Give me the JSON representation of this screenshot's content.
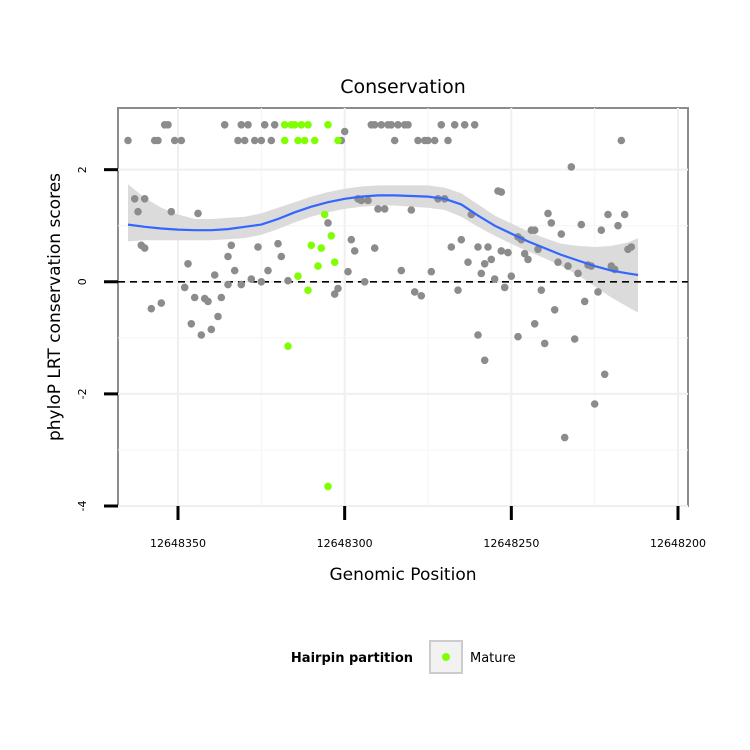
{
  "chart_data": {
    "type": "scatter",
    "title": "Conservation",
    "xlabel": "Genomic Position",
    "ylabel": "phyloP LRT conservation scores",
    "x_reversed": true,
    "xlim": [
      12648368,
      12648197
    ],
    "ylim": [
      -4,
      3.1
    ],
    "x_ticks": [
      12648350,
      12648300,
      12648250,
      12648200
    ],
    "x_tick_labels": [
      "12648350",
      "12648300",
      "12648250",
      "12648200"
    ],
    "y_ticks": [
      -4,
      -2,
      0,
      2
    ],
    "y_tick_labels": [
      "-4",
      "-2",
      "0",
      "2"
    ],
    "reference_line": {
      "y": 0,
      "style": "dashed"
    },
    "legend": {
      "title": "Hairpin partition",
      "position": "bottom",
      "entries": [
        {
          "label": "Mature",
          "color": "#7fff00"
        }
      ]
    },
    "colors": {
      "other": "#8c8c8c",
      "mature": "#7fff00",
      "smooth": "#3366ff",
      "ribbon": "#d9d9d9"
    },
    "series": [
      {
        "name": "Other",
        "points": [
          [
            12648365,
            2.52
          ],
          [
            12648363,
            1.48
          ],
          [
            12648362,
            1.25
          ],
          [
            12648361,
            0.65
          ],
          [
            12648360,
            1.48
          ],
          [
            12648360,
            0.6
          ],
          [
            12648358,
            -0.48
          ],
          [
            12648357,
            2.52
          ],
          [
            12648356,
            2.52
          ],
          [
            12648355,
            -0.38
          ],
          [
            12648354,
            2.8
          ],
          [
            12648353,
            2.8
          ],
          [
            12648352,
            1.25
          ],
          [
            12648351,
            2.52
          ],
          [
            12648349,
            2.52
          ],
          [
            12648348,
            -0.1
          ],
          [
            12648347,
            0.32
          ],
          [
            12648346,
            -0.75
          ],
          [
            12648345,
            -0.28
          ],
          [
            12648344,
            1.22
          ],
          [
            12648343,
            -0.95
          ],
          [
            12648342,
            -0.3
          ],
          [
            12648341,
            -0.35
          ],
          [
            12648340,
            -0.85
          ],
          [
            12648339,
            0.12
          ],
          [
            12648338,
            -0.62
          ],
          [
            12648337,
            -0.28
          ],
          [
            12648336,
            2.8
          ],
          [
            12648335,
            -0.05
          ],
          [
            12648335,
            0.45
          ],
          [
            12648334,
            0.65
          ],
          [
            12648333,
            0.2
          ],
          [
            12648332,
            2.52
          ],
          [
            12648331,
            2.8
          ],
          [
            12648331,
            -0.05
          ],
          [
            12648330,
            2.52
          ],
          [
            12648329,
            2.8
          ],
          [
            12648328,
            0.05
          ],
          [
            12648327,
            2.52
          ],
          [
            12648326,
            0.62
          ],
          [
            12648325,
            0.0
          ],
          [
            12648325,
            2.52
          ],
          [
            12648324,
            2.8
          ],
          [
            12648323,
            0.2
          ],
          [
            12648322,
            2.52
          ],
          [
            12648321,
            2.8
          ],
          [
            12648320,
            0.68
          ],
          [
            12648319,
            0.45
          ],
          [
            12648317,
            0.02
          ],
          [
            12648305,
            1.05
          ],
          [
            12648303,
            -0.22
          ],
          [
            12648302,
            -0.12
          ],
          [
            12648301,
            2.52
          ],
          [
            12648300,
            2.68
          ],
          [
            12648299,
            0.18
          ],
          [
            12648298,
            0.75
          ],
          [
            12648297,
            0.55
          ],
          [
            12648296,
            1.48
          ],
          [
            12648295,
            1.45
          ],
          [
            12648294,
            0.0
          ],
          [
            12648293,
            1.45
          ],
          [
            12648292,
            2.8
          ],
          [
            12648291,
            0.6
          ],
          [
            12648291,
            2.8
          ],
          [
            12648290,
            1.3
          ],
          [
            12648289,
            2.8
          ],
          [
            12648288,
            1.3
          ],
          [
            12648287,
            2.8
          ],
          [
            12648286,
            2.8
          ],
          [
            12648285,
            2.52
          ],
          [
            12648284,
            2.8
          ],
          [
            12648283,
            0.2
          ],
          [
            12648282,
            2.8
          ],
          [
            12648281,
            2.8
          ],
          [
            12648280,
            1.28
          ],
          [
            12648279,
            -0.18
          ],
          [
            12648278,
            2.52
          ],
          [
            12648277,
            -0.25
          ],
          [
            12648276,
            2.52
          ],
          [
            12648275,
            2.52
          ],
          [
            12648274,
            0.18
          ],
          [
            12648273,
            2.52
          ],
          [
            12648272,
            1.48
          ],
          [
            12648271,
            2.8
          ],
          [
            12648270,
            1.48
          ],
          [
            12648269,
            2.52
          ],
          [
            12648268,
            0.62
          ],
          [
            12648267,
            2.8
          ],
          [
            12648266,
            -0.15
          ],
          [
            12648265,
            0.75
          ],
          [
            12648264,
            2.8
          ],
          [
            12648263,
            0.35
          ],
          [
            12648262,
            1.2
          ],
          [
            12648261,
            2.8
          ],
          [
            12648260,
            -0.95
          ],
          [
            12648260,
            0.62
          ],
          [
            12648259,
            0.15
          ],
          [
            12648258,
            -1.4
          ],
          [
            12648258,
            0.32
          ],
          [
            12648257,
            0.62
          ],
          [
            12648256,
            0.4
          ],
          [
            12648255,
            0.05
          ],
          [
            12648254,
            1.62
          ],
          [
            12648253,
            1.6
          ],
          [
            12648253,
            0.55
          ],
          [
            12648252,
            -0.1
          ],
          [
            12648251,
            0.52
          ],
          [
            12648250,
            0.1
          ],
          [
            12648248,
            -0.98
          ],
          [
            12648248,
            0.8
          ],
          [
            12648247,
            0.75
          ],
          [
            12648246,
            0.5
          ],
          [
            12648245,
            0.4
          ],
          [
            12648244,
            0.92
          ],
          [
            12648243,
            0.92
          ],
          [
            12648243,
            -0.75
          ],
          [
            12648242,
            0.58
          ],
          [
            12648241,
            -0.15
          ],
          [
            12648240,
            -1.1
          ],
          [
            12648239,
            1.22
          ],
          [
            12648238,
            1.05
          ],
          [
            12648237,
            -0.5
          ],
          [
            12648236,
            0.35
          ],
          [
            12648235,
            0.85
          ],
          [
            12648234,
            -2.78
          ],
          [
            12648233,
            0.28
          ],
          [
            12648232,
            2.05
          ],
          [
            12648231,
            -1.02
          ],
          [
            12648230,
            0.15
          ],
          [
            12648229,
            1.02
          ],
          [
            12648228,
            -0.35
          ],
          [
            12648227,
            0.3
          ],
          [
            12648226,
            0.28
          ],
          [
            12648225,
            -2.18
          ],
          [
            12648224,
            -0.18
          ],
          [
            12648223,
            0.92
          ],
          [
            12648222,
            -1.65
          ],
          [
            12648221,
            1.2
          ],
          [
            12648220,
            0.28
          ],
          [
            12648219,
            0.22
          ],
          [
            12648218,
            1.0
          ],
          [
            12648217,
            2.52
          ],
          [
            12648216,
            1.2
          ],
          [
            12648215,
            0.58
          ],
          [
            12648214,
            0.62
          ]
        ]
      },
      {
        "name": "Mature",
        "points": [
          [
            12648318,
            2.8
          ],
          [
            12648318,
            2.52
          ],
          [
            12648317,
            -1.15
          ],
          [
            12648316,
            2.8
          ],
          [
            12648315,
            2.8
          ],
          [
            12648314,
            2.52
          ],
          [
            12648314,
            0.1
          ],
          [
            12648313,
            2.8
          ],
          [
            12648312,
            2.52
          ],
          [
            12648311,
            -0.15
          ],
          [
            12648311,
            2.8
          ],
          [
            12648310,
            0.65
          ],
          [
            12648309,
            2.52
          ],
          [
            12648308,
            0.28
          ],
          [
            12648307,
            0.6
          ],
          [
            12648306,
            1.2
          ],
          [
            12648305,
            -3.65
          ],
          [
            12648305,
            2.8
          ],
          [
            12648304,
            0.82
          ],
          [
            12648303,
            0.35
          ],
          [
            12648302,
            2.52
          ]
        ]
      }
    ],
    "smooth_line": {
      "x": [
        12648365,
        12648360,
        12648355,
        12648350,
        12648345,
        12648340,
        12648335,
        12648330,
        12648325,
        12648320,
        12648315,
        12648310,
        12648305,
        12648300,
        12648295,
        12648290,
        12648285,
        12648280,
        12648275,
        12648270,
        12648265,
        12648260,
        12648255,
        12648250,
        12648245,
        12648240,
        12648235,
        12648230,
        12648225,
        12648220,
        12648215,
        12648212
      ],
      "y": [
        1.02,
        0.98,
        0.95,
        0.93,
        0.92,
        0.92,
        0.94,
        0.98,
        1.02,
        1.12,
        1.24,
        1.34,
        1.42,
        1.48,
        1.52,
        1.54,
        1.54,
        1.53,
        1.52,
        1.48,
        1.38,
        1.18,
        1.0,
        0.86,
        0.72,
        0.6,
        0.48,
        0.38,
        0.28,
        0.2,
        0.15,
        0.12
      ],
      "lower": [
        0.72,
        0.74,
        0.74,
        0.74,
        0.74,
        0.74,
        0.76,
        0.78,
        0.84,
        0.94,
        1.06,
        1.16,
        1.24,
        1.3,
        1.34,
        1.36,
        1.36,
        1.34,
        1.32,
        1.28,
        1.16,
        0.98,
        0.82,
        0.68,
        0.54,
        0.42,
        0.28,
        0.12,
        -0.08,
        -0.28,
        -0.45,
        -0.55
      ],
      "upper": [
        1.74,
        1.5,
        1.32,
        1.2,
        1.12,
        1.12,
        1.14,
        1.16,
        1.22,
        1.32,
        1.42,
        1.52,
        1.6,
        1.66,
        1.7,
        1.72,
        1.72,
        1.72,
        1.72,
        1.68,
        1.58,
        1.38,
        1.18,
        1.04,
        0.9,
        0.78,
        0.68,
        0.64,
        0.62,
        0.64,
        0.7,
        0.78
      ]
    }
  }
}
